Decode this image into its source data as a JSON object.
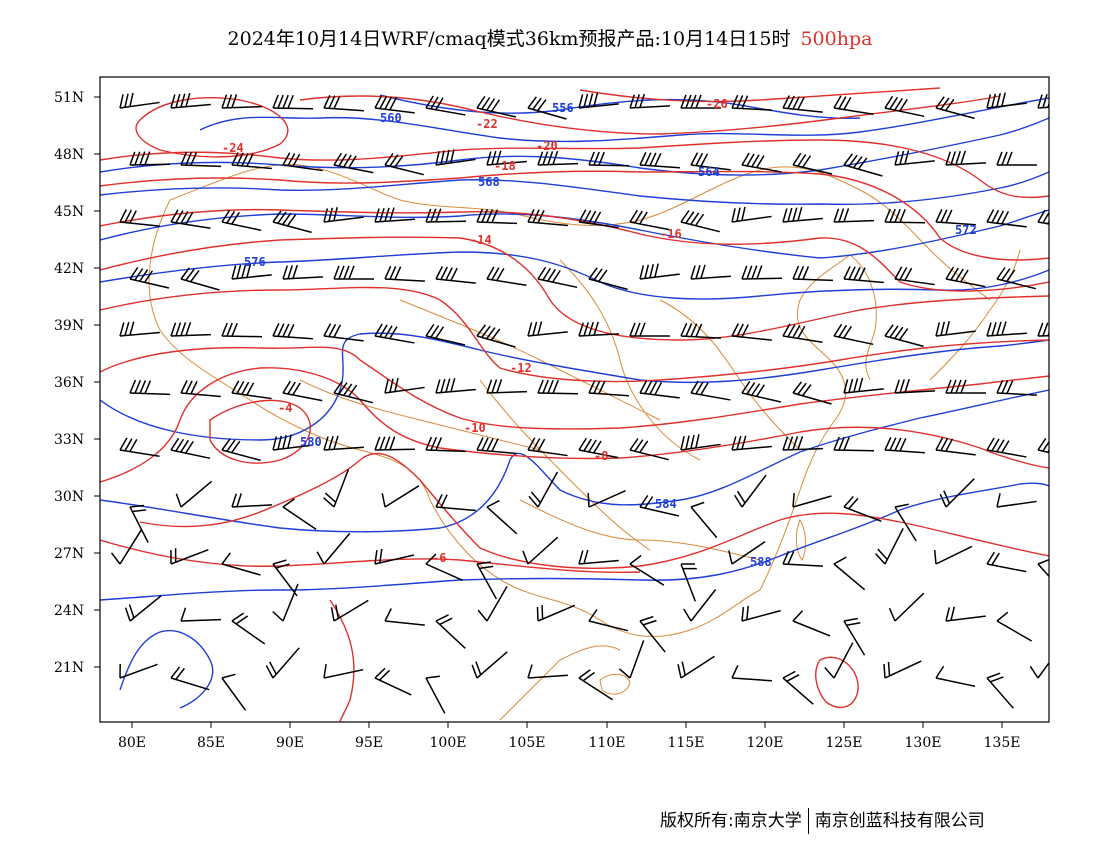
{
  "title": {
    "main": "2024年10月14日WRF/cmaq模式36km预报产品:10月14日15时",
    "level": "500hpa",
    "level_color": "#e0302c"
  },
  "map": {
    "lon_range": [
      78,
      138
    ],
    "lat_range": [
      17.5,
      52.5
    ],
    "lon_ticks": [
      "80E",
      "85E",
      "90E",
      "95E",
      "100E",
      "105E",
      "110E",
      "115E",
      "120E",
      "125E",
      "130E",
      "135E"
    ],
    "lat_ticks": [
      "51N",
      "48N",
      "45N",
      "42N",
      "39N",
      "36N",
      "33N",
      "30N",
      "27N",
      "24N",
      "21N"
    ],
    "colors": {
      "geopotential": "#1f3fd6",
      "temperature": "#e0302c",
      "boundaries": "#d98a3a",
      "wind_barbs": "#000000"
    },
    "geopotential_labels": [
      "556",
      "560",
      "564",
      "568",
      "572",
      "576",
      "580",
      "584",
      "588"
    ],
    "temperature_labels": [
      "-26",
      "-24",
      "-22",
      "-20",
      "-18",
      "-16",
      "-14",
      "-12",
      "-10",
      "-8",
      "-6",
      "-4"
    ]
  },
  "credits": {
    "copyright": "版权所有:南京大学",
    "company": "南京创蓝科技有限公司"
  }
}
